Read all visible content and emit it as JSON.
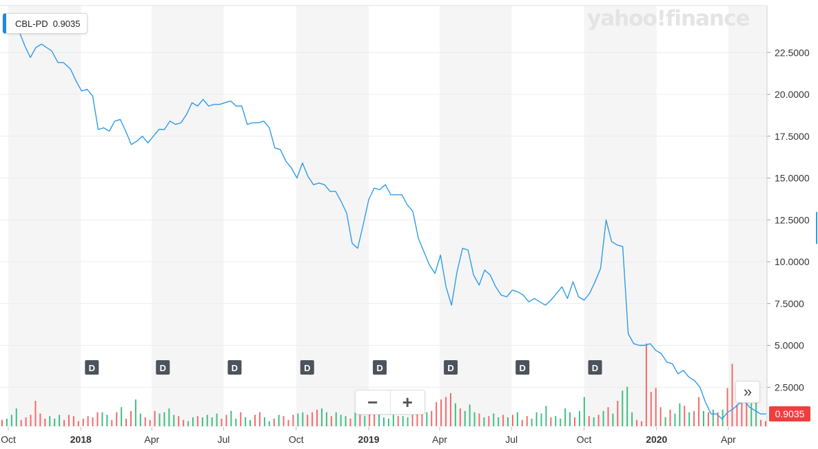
{
  "ticker": {
    "symbol": "CBL-PD",
    "value": "0.9035"
  },
  "watermark": "yahoo!finance",
  "controls": {
    "zoom_out": "−",
    "zoom_in": "+",
    "expand": "»"
  },
  "last_price_badge": "0.9035",
  "colors": {
    "line": "#2e9bea",
    "volume_up": "#3ebf82",
    "volume_down": "#f36a6a",
    "band": "#f5f5f5",
    "grid": "#ececec",
    "dividend_badge": "#4b535c",
    "last_badge": "#f03e3e"
  },
  "chart_data": {
    "type": "line",
    "title": "",
    "x_start": "2017-10-01",
    "x_end": "2020-05-20",
    "x_tick_labels": [
      {
        "date": "2017-10-01",
        "label": "Oct",
        "bold": false
      },
      {
        "date": "2018-01-01",
        "label": "2018",
        "bold": true
      },
      {
        "date": "2018-04-01",
        "label": "Apr",
        "bold": false
      },
      {
        "date": "2018-07-01",
        "label": "Jul",
        "bold": false
      },
      {
        "date": "2018-10-01",
        "label": "Oct",
        "bold": false
      },
      {
        "date": "2019-01-01",
        "label": "2019",
        "bold": true
      },
      {
        "date": "2019-04-01",
        "label": "Apr",
        "bold": false
      },
      {
        "date": "2019-07-01",
        "label": "Jul",
        "bold": false
      },
      {
        "date": "2019-10-01",
        "label": "Oct",
        "bold": false
      },
      {
        "date": "2020-01-01",
        "label": "2020",
        "bold": true
      },
      {
        "date": "2020-04-01",
        "label": "Apr",
        "bold": false
      }
    ],
    "y_ticks": [
      {
        "value": 2.5,
        "label": "2.5000"
      },
      {
        "value": 5,
        "label": "5.0000"
      },
      {
        "value": 7.5,
        "label": "7.5000"
      },
      {
        "value": 10,
        "label": "10.0000"
      },
      {
        "value": 12.5,
        "label": "12.5000"
      },
      {
        "value": 15,
        "label": "15.0000"
      },
      {
        "value": 17.5,
        "label": "17.5000"
      },
      {
        "value": 20,
        "label": "20.0000"
      },
      {
        "value": 22.5,
        "label": "22.5000"
      }
    ],
    "ylim": [
      0,
      25
    ],
    "grid": true,
    "series": [
      {
        "points": [
          [
            "2017-10-12",
            24.1
          ],
          [
            "2017-10-22",
            22.9
          ],
          [
            "2017-10-29",
            22.2
          ],
          [
            "2017-11-05",
            22.8
          ],
          [
            "2017-11-12",
            23.0
          ],
          [
            "2017-11-25",
            22.6
          ],
          [
            "2017-12-03",
            21.9
          ],
          [
            "2017-12-10",
            21.9
          ],
          [
            "2017-12-19",
            21.5
          ],
          [
            "2017-12-26",
            20.8
          ],
          [
            "2018-01-02",
            20.2
          ],
          [
            "2018-01-09",
            20.3
          ],
          [
            "2018-01-16",
            19.9
          ],
          [
            "2018-01-23",
            17.9
          ],
          [
            "2018-01-30",
            18.0
          ],
          [
            "2018-02-06",
            17.8
          ],
          [
            "2018-02-13",
            18.4
          ],
          [
            "2018-02-20",
            18.5
          ],
          [
            "2018-02-27",
            17.8
          ],
          [
            "2018-03-06",
            17.0
          ],
          [
            "2018-03-13",
            17.2
          ],
          [
            "2018-03-20",
            17.5
          ],
          [
            "2018-03-27",
            17.1
          ],
          [
            "2018-04-03",
            17.5
          ],
          [
            "2018-04-10",
            17.9
          ],
          [
            "2018-04-17",
            17.9
          ],
          [
            "2018-04-24",
            18.4
          ],
          [
            "2018-05-01",
            18.2
          ],
          [
            "2018-05-08",
            18.3
          ],
          [
            "2018-05-15",
            18.8
          ],
          [
            "2018-05-22",
            19.5
          ],
          [
            "2018-05-29",
            19.3
          ],
          [
            "2018-06-05",
            19.7
          ],
          [
            "2018-06-12",
            19.3
          ],
          [
            "2018-06-19",
            19.4
          ],
          [
            "2018-06-26",
            19.4
          ],
          [
            "2018-07-03",
            19.5
          ],
          [
            "2018-07-10",
            19.6
          ],
          [
            "2018-07-17",
            19.3
          ],
          [
            "2018-07-24",
            19.3
          ],
          [
            "2018-07-31",
            18.2
          ],
          [
            "2018-08-07",
            18.3
          ],
          [
            "2018-08-14",
            18.3
          ],
          [
            "2018-08-21",
            18.4
          ],
          [
            "2018-08-28",
            18.0
          ],
          [
            "2018-09-04",
            16.8
          ],
          [
            "2018-09-11",
            16.7
          ],
          [
            "2018-09-18",
            16.0
          ],
          [
            "2018-09-25",
            15.6
          ],
          [
            "2018-10-02",
            15.0
          ],
          [
            "2018-10-09",
            15.9
          ],
          [
            "2018-10-16",
            15.1
          ],
          [
            "2018-10-23",
            14.6
          ],
          [
            "2018-10-30",
            14.7
          ],
          [
            "2018-11-06",
            14.6
          ],
          [
            "2018-11-13",
            14.2
          ],
          [
            "2018-11-20",
            14.2
          ],
          [
            "2018-11-27",
            13.6
          ],
          [
            "2018-12-04",
            12.9
          ],
          [
            "2018-12-11",
            11.1
          ],
          [
            "2018-12-18",
            10.8
          ],
          [
            "2018-12-25",
            12.2
          ],
          [
            "2019-01-01",
            13.7
          ],
          [
            "2019-01-08",
            14.4
          ],
          [
            "2019-01-15",
            14.3
          ],
          [
            "2019-01-22",
            14.6
          ],
          [
            "2019-01-29",
            14.0
          ],
          [
            "2019-02-05",
            14.0
          ],
          [
            "2019-02-12",
            14.0
          ],
          [
            "2019-02-19",
            13.4
          ],
          [
            "2019-02-26",
            13.0
          ],
          [
            "2019-03-05",
            11.4
          ],
          [
            "2019-03-12",
            10.6
          ],
          [
            "2019-03-19",
            9.8
          ],
          [
            "2019-03-26",
            9.3
          ],
          [
            "2019-04-02",
            10.4
          ],
          [
            "2019-04-09",
            8.5
          ],
          [
            "2019-04-16",
            7.4
          ],
          [
            "2019-04-23",
            9.4
          ],
          [
            "2019-04-30",
            10.8
          ],
          [
            "2019-05-07",
            10.7
          ],
          [
            "2019-05-14",
            9.2
          ],
          [
            "2019-05-21",
            8.6
          ],
          [
            "2019-05-28",
            9.5
          ],
          [
            "2019-06-04",
            9.2
          ],
          [
            "2019-06-11",
            8.5
          ],
          [
            "2019-06-18",
            8.0
          ],
          [
            "2019-06-25",
            7.9
          ],
          [
            "2019-07-02",
            8.3
          ],
          [
            "2019-07-09",
            8.2
          ],
          [
            "2019-07-16",
            8.0
          ],
          [
            "2019-07-23",
            7.6
          ],
          [
            "2019-07-30",
            7.8
          ],
          [
            "2019-08-06",
            7.6
          ],
          [
            "2019-08-13",
            7.4
          ],
          [
            "2019-08-20",
            7.7
          ],
          [
            "2019-08-27",
            8.1
          ],
          [
            "2019-09-03",
            8.5
          ],
          [
            "2019-09-10",
            7.8
          ],
          [
            "2019-09-17",
            8.8
          ],
          [
            "2019-09-24",
            7.9
          ],
          [
            "2019-10-01",
            7.7
          ],
          [
            "2019-10-08",
            8.1
          ],
          [
            "2019-10-15",
            8.8
          ],
          [
            "2019-10-22",
            9.6
          ],
          [
            "2019-10-29",
            12.5
          ],
          [
            "2019-11-05",
            11.2
          ],
          [
            "2019-11-12",
            11.0
          ],
          [
            "2019-11-19",
            10.9
          ],
          [
            "2019-11-26",
            5.7
          ],
          [
            "2019-12-03",
            5.1
          ],
          [
            "2019-12-10",
            5.0
          ],
          [
            "2019-12-17",
            5.0
          ],
          [
            "2019-12-24",
            5.1
          ],
          [
            "2019-12-31",
            4.7
          ],
          [
            "2020-01-07",
            4.5
          ],
          [
            "2020-01-14",
            4.0
          ],
          [
            "2020-01-21",
            3.9
          ],
          [
            "2020-01-28",
            3.3
          ],
          [
            "2020-02-04",
            3.5
          ],
          [
            "2020-02-11",
            3.1
          ],
          [
            "2020-02-18",
            2.9
          ],
          [
            "2020-02-25",
            2.5
          ],
          [
            "2020-03-03",
            1.6
          ],
          [
            "2020-03-10",
            0.9
          ],
          [
            "2020-03-17",
            0.9
          ],
          [
            "2020-03-24",
            0.6
          ],
          [
            "2020-03-31",
            1.0
          ],
          [
            "2020-04-07",
            1.2
          ],
          [
            "2020-04-14",
            1.5
          ],
          [
            "2020-04-21",
            1.7
          ],
          [
            "2020-04-28",
            1.3
          ],
          [
            "2020-05-05",
            1.1
          ],
          [
            "2020-05-12",
            0.9
          ],
          [
            "2020-05-19",
            0.9
          ]
        ]
      }
    ],
    "volume": [
      [
        0.25,
        0
      ],
      [
        0.3,
        1
      ],
      [
        0.45,
        1
      ],
      [
        0.7,
        1
      ],
      [
        0.25,
        0
      ],
      [
        0.35,
        0
      ],
      [
        0.45,
        0
      ],
      [
        1.0,
        0
      ],
      [
        0.5,
        0
      ],
      [
        0.3,
        0
      ],
      [
        0.4,
        1
      ],
      [
        0.3,
        1
      ],
      [
        0.45,
        1
      ],
      [
        0.25,
        0
      ],
      [
        0.45,
        0
      ],
      [
        0.4,
        0
      ],
      [
        0.2,
        0
      ],
      [
        0.3,
        0
      ],
      [
        0.4,
        0
      ],
      [
        0.35,
        0
      ],
      [
        0.55,
        0
      ],
      [
        0.55,
        1
      ],
      [
        0.45,
        1
      ],
      [
        0.25,
        0
      ],
      [
        0.55,
        0
      ],
      [
        0.75,
        1
      ],
      [
        0.3,
        0
      ],
      [
        0.6,
        0
      ],
      [
        1.05,
        1
      ],
      [
        0.5,
        1
      ],
      [
        0.35,
        0
      ],
      [
        0.25,
        0
      ],
      [
        0.6,
        0
      ],
      [
        0.5,
        1
      ],
      [
        0.55,
        1
      ],
      [
        0.7,
        1
      ],
      [
        0.45,
        1
      ],
      [
        0.4,
        0
      ],
      [
        0.25,
        0
      ],
      [
        0.2,
        1
      ],
      [
        0.35,
        1
      ],
      [
        0.4,
        0
      ],
      [
        0.35,
        1
      ],
      [
        0.45,
        1
      ],
      [
        0.35,
        1
      ],
      [
        0.5,
        1
      ],
      [
        0.3,
        0
      ],
      [
        0.45,
        0
      ],
      [
        0.6,
        1
      ],
      [
        0.3,
        1
      ],
      [
        0.55,
        0
      ],
      [
        0.35,
        1
      ],
      [
        0.25,
        1
      ],
      [
        0.45,
        0
      ],
      [
        0.55,
        0
      ],
      [
        0.35,
        1
      ],
      [
        0.2,
        1
      ],
      [
        0.3,
        0
      ],
      [
        0.45,
        1
      ],
      [
        0.4,
        0
      ],
      [
        0.25,
        0
      ],
      [
        0.45,
        0
      ],
      [
        0.5,
        1
      ],
      [
        0.55,
        1
      ],
      [
        0.45,
        0
      ],
      [
        0.55,
        0
      ],
      [
        0.65,
        0
      ],
      [
        0.7,
        1
      ],
      [
        0.55,
        1
      ],
      [
        0.4,
        0
      ],
      [
        0.55,
        1
      ],
      [
        0.45,
        1
      ],
      [
        0.4,
        1
      ],
      [
        0.3,
        0
      ],
      [
        0.55,
        1
      ],
      [
        0.45,
        0
      ],
      [
        0.4,
        1
      ],
      [
        0.75,
        0
      ],
      [
        0.85,
        0
      ],
      [
        0.55,
        1
      ],
      [
        0.35,
        1
      ],
      [
        0.3,
        1
      ],
      [
        0.45,
        1
      ],
      [
        0.4,
        0
      ],
      [
        0.4,
        1
      ],
      [
        0.35,
        1
      ],
      [
        0.45,
        0
      ],
      [
        0.5,
        0
      ],
      [
        0.55,
        0
      ],
      [
        0.55,
        1
      ],
      [
        0.6,
        0
      ],
      [
        0.95,
        0
      ],
      [
        1.05,
        0
      ],
      [
        1.15,
        0
      ],
      [
        1.3,
        0
      ],
      [
        0.9,
        1
      ],
      [
        0.7,
        0
      ],
      [
        0.6,
        1
      ],
      [
        0.85,
        1
      ],
      [
        0.55,
        1
      ],
      [
        0.5,
        0
      ],
      [
        0.35,
        1
      ],
      [
        0.4,
        0
      ],
      [
        0.5,
        1
      ],
      [
        0.35,
        1
      ],
      [
        0.45,
        0
      ],
      [
        0.35,
        1
      ],
      [
        0.45,
        0
      ],
      [
        0.55,
        1
      ],
      [
        0.25,
        0
      ],
      [
        0.4,
        0
      ],
      [
        0.3,
        1
      ],
      [
        0.55,
        1
      ],
      [
        0.5,
        1
      ],
      [
        0.8,
        1
      ],
      [
        0.35,
        0
      ],
      [
        0.4,
        1
      ],
      [
        0.3,
        1
      ],
      [
        0.7,
        1
      ],
      [
        0.55,
        1
      ],
      [
        0.35,
        0
      ],
      [
        0.6,
        1
      ],
      [
        1.15,
        1
      ],
      [
        0.4,
        0
      ],
      [
        0.35,
        1
      ],
      [
        0.45,
        0
      ],
      [
        0.6,
        1
      ],
      [
        0.75,
        0
      ],
      [
        0.5,
        1
      ],
      [
        1.0,
        0
      ],
      [
        1.4,
        1
      ],
      [
        1.55,
        1
      ],
      [
        0.55,
        1
      ],
      [
        0.25,
        0
      ],
      [
        0.2,
        0
      ],
      [
        3.25,
        0
      ],
      [
        1.35,
        0
      ],
      [
        1.5,
        0
      ],
      [
        0.75,
        0
      ],
      [
        0.35,
        1
      ],
      [
        0.65,
        0
      ],
      [
        0.5,
        1
      ],
      [
        0.9,
        1
      ],
      [
        0.8,
        0
      ],
      [
        0.55,
        1
      ],
      [
        0.6,
        0
      ],
      [
        1.15,
        0
      ],
      [
        0.6,
        1
      ],
      [
        0.55,
        0
      ],
      [
        0.65,
        1
      ],
      [
        0.55,
        0
      ],
      [
        0.65,
        1
      ],
      [
        1.5,
        0
      ],
      [
        2.45,
        0
      ],
      [
        0.85,
        0
      ],
      [
        1.25,
        0
      ],
      [
        1.05,
        0
      ],
      [
        0.9,
        1
      ],
      [
        1.1,
        1
      ],
      [
        0.25,
        0
      ],
      [
        0.2,
        0
      ]
    ],
    "dividend_markers": [
      {
        "date": "2017-08-28",
        "label": "D"
      },
      {
        "date": "2018-01-15",
        "label": "D"
      },
      {
        "date": "2018-04-15",
        "label": "D"
      },
      {
        "date": "2018-07-15",
        "label": "D"
      },
      {
        "date": "2018-10-15",
        "label": "D"
      },
      {
        "date": "2019-01-15",
        "label": "D"
      },
      {
        "date": "2019-04-15",
        "label": "D"
      },
      {
        "date": "2019-07-15",
        "label": "D"
      },
      {
        "date": "2019-10-15",
        "label": "D"
      }
    ],
    "partial_right_value_label": "12.5000"
  }
}
